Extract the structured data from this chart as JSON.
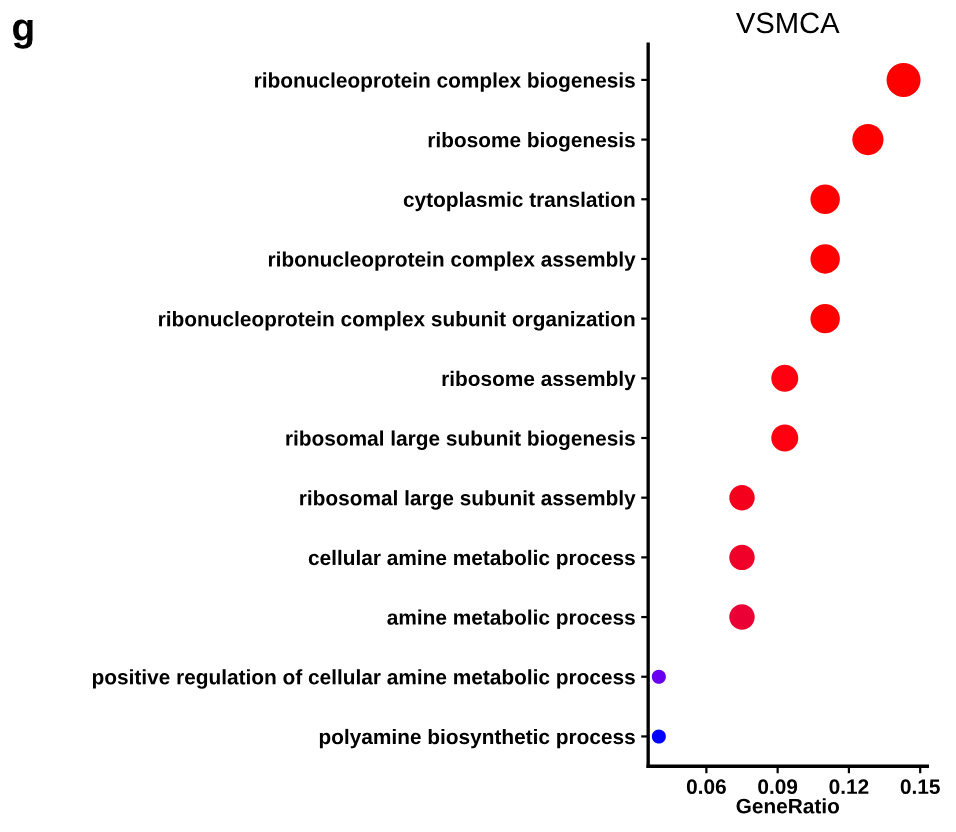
{
  "chart_data": {
    "type": "bubble",
    "title": "VSMCA",
    "xlabel": "GeneRatio",
    "annotations": [
      "g"
    ],
    "categories": [
      "ribonucleoprotein complex biogenesis",
      "ribosome biogenesis",
      "cytoplasmic translation",
      "ribonucleoprotein complex assembly",
      "ribonucleoprotein complex subunit organization",
      "ribosome assembly",
      "ribosomal large subunit biogenesis",
      "ribosomal large subunit assembly",
      "cellular amine metabolic process",
      "amine metabolic process",
      "positive regulation of cellular amine metabolic process",
      "polyamine biosynthetic process"
    ],
    "values": [
      0.143,
      0.128,
      0.11,
      0.11,
      0.11,
      0.093,
      0.093,
      0.075,
      0.075,
      0.075,
      0.04,
      0.04
    ],
    "sizes": [
      1,
      0.84,
      0.75,
      0.75,
      0.75,
      0.63,
      0.63,
      0.56,
      0.56,
      0.56,
      0.17,
      0.17
    ],
    "colors": [
      "#ff0000",
      "#ff0000",
      "#ff0000",
      "#ff0000",
      "#ff0000",
      "#ff0010",
      "#ff0010",
      "#f5001c",
      "#f00028",
      "#ea0035",
      "#6a00f0",
      "#0000ff"
    ],
    "orientation": "horizontal",
    "xlim": [
      0.0355,
      0.153
    ],
    "xticks": [
      0.06,
      0.09,
      0.12,
      0.15
    ],
    "grid": false
  }
}
